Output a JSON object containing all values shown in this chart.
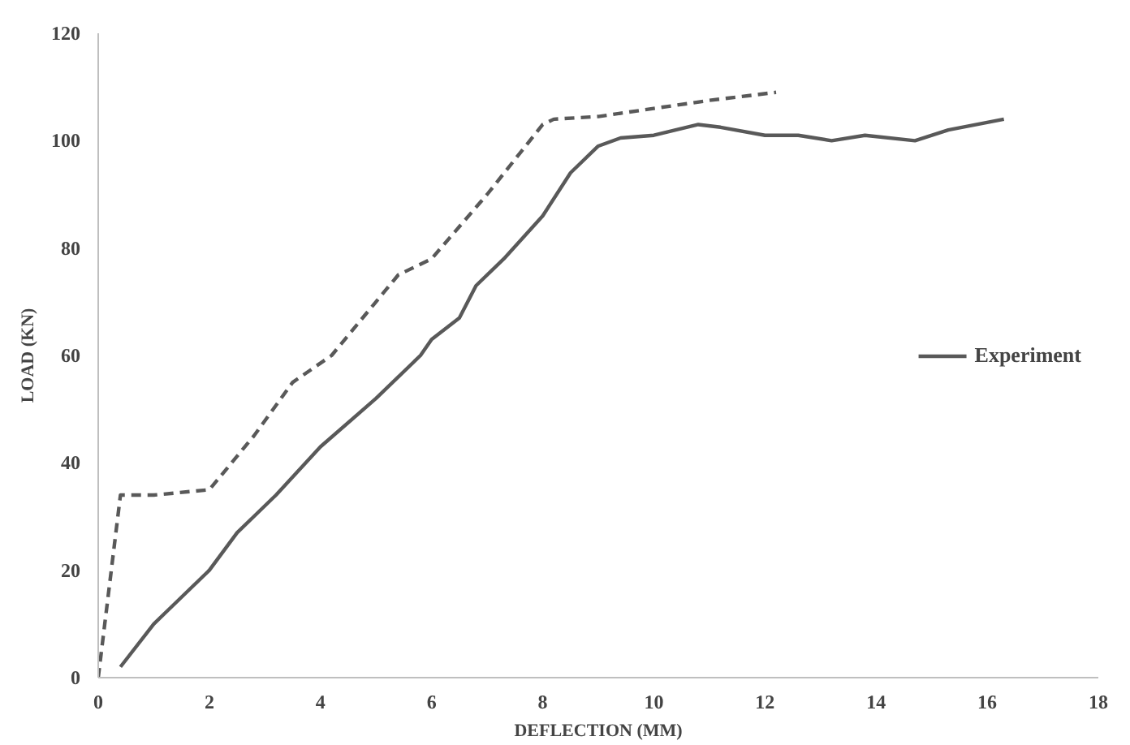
{
  "chart_data": {
    "type": "line",
    "xlabel": "DEFLECTION (MM)",
    "ylabel": "LOAD (KN)",
    "xlim": [
      0,
      18
    ],
    "ylim": [
      0,
      120
    ],
    "xticks": [
      0,
      2,
      4,
      6,
      8,
      10,
      12,
      14,
      16,
      18
    ],
    "yticks": [
      0,
      20,
      40,
      60,
      80,
      100,
      120
    ],
    "grid": false,
    "legend": "right",
    "marker": "none",
    "series": [
      {
        "color": "#595959",
        "line_style": "dashed",
        "x": [
          0,
          0.4,
          1,
          2,
          2.8,
          3.5,
          4.2,
          5,
          5.4,
          6,
          7,
          8,
          8.2,
          9,
          10,
          11,
          12.2
        ],
        "values": [
          0,
          34,
          34,
          35,
          45,
          55,
          60,
          70,
          75,
          78,
          90,
          103,
          104,
          104.5,
          106,
          107.5,
          109
        ]
      },
      {
        "name": "Experiment",
        "color": "#595959",
        "line_style": "solid",
        "x": [
          0.4,
          1,
          1.3,
          2,
          2.5,
          2.8,
          3.2,
          4,
          5,
          5.8,
          6,
          6.5,
          6.8,
          7.3,
          8,
          8.5,
          9,
          9.4,
          10,
          10.8,
          11.2,
          12,
          12.6,
          13.2,
          13.8,
          14.7,
          15.3,
          16.3
        ],
        "values": [
          2,
          10,
          13,
          20,
          27,
          30,
          34,
          43,
          52,
          60,
          63,
          67,
          73,
          78,
          86,
          94,
          99,
          100.5,
          101,
          103,
          102.5,
          101,
          101,
          100,
          101,
          100,
          102,
          104
        ]
      }
    ]
  }
}
